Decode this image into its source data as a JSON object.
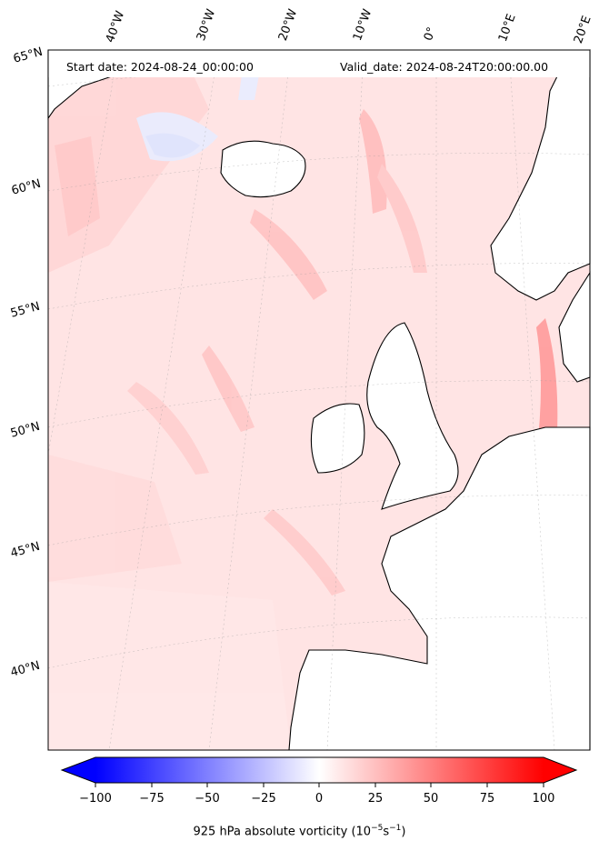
{
  "header": {
    "start_date": "Start date: 2024-08-24_00:00:00",
    "valid_date": "Valid_date: 2024-08-24T20:00:00.00"
  },
  "lon_labels": [
    "40°W",
    "30°W",
    "20°W",
    "10°W",
    "0°",
    "10°E",
    "20°E"
  ],
  "lat_labels": [
    "65°N",
    "60°N",
    "55°N",
    "50°N",
    "45°N",
    "40°N"
  ],
  "colorbar": {
    "ticks": [
      "−100",
      "−75",
      "−50",
      "−25",
      "0",
      "25",
      "50",
      "75",
      "100"
    ],
    "label_prefix": "925 hPa absolute vorticity (10",
    "label_exp1": "−5",
    "label_mid": "s",
    "label_exp2": "−1",
    "label_suffix": ")",
    "vmin": -100,
    "vmax": 100,
    "colormap": "bwr"
  },
  "colors": {
    "negative": "#0000ff",
    "zero": "#ffffff",
    "positive": "#ff0000",
    "background_field": "#ffe6e6",
    "coastline": "#000000"
  }
}
